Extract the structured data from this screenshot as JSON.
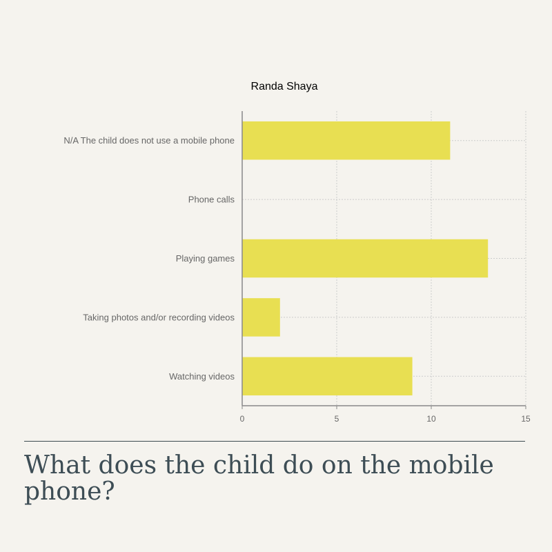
{
  "question": "What does the child do on the mobile phone?",
  "colors": {
    "background": "#f5f3ee",
    "bar": "#e8df52",
    "axis": "#888888",
    "grid": "#cccccc",
    "question_text": "#3d4d55"
  },
  "chart_data": {
    "type": "bar",
    "orientation": "horizontal",
    "title": "Randa Shaya",
    "xlabel": "",
    "ylabel": "",
    "categories": [
      "N/A The child does not use a mobile phone",
      "Phone calls",
      "Playing games",
      "Taking photos and/or recording videos",
      "Watching videos"
    ],
    "values": [
      11,
      0,
      13,
      2,
      9
    ],
    "xlim": [
      0,
      15
    ],
    "xticks": [
      0,
      5,
      10,
      15
    ],
    "grid": true,
    "legend": "none"
  }
}
